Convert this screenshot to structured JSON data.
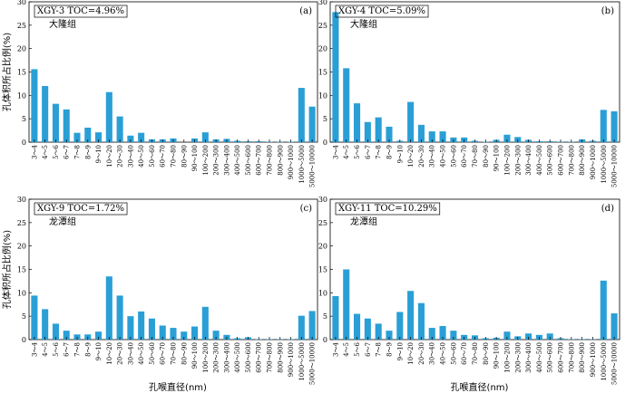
{
  "figure": {
    "ylabel": "孔体积所占比例(%)",
    "xlabel": "孔喉直径(nm)",
    "bar_color": "#2a9fd6"
  },
  "chart_data": [
    {
      "type": "bar",
      "panel": "(a)",
      "sample": "XGY-3 TOC=4.96%",
      "formation": "大隆组",
      "categories": [
        "3～4",
        "4～5",
        "5～6",
        "6～7",
        "7～8",
        "8～9",
        "9～10",
        "10～20",
        "20～30",
        "30～40",
        "40～50",
        "50～60",
        "60～70",
        "70～80",
        "80～90",
        "90～100",
        "100～200",
        "200～300",
        "300～400",
        "400～500",
        "500～600",
        "600～700",
        "700～800",
        "800～900",
        "900～1000",
        "1000～5000",
        "5000～10000"
      ],
      "values": [
        15.6,
        12.0,
        8.2,
        7.0,
        2.0,
        3.1,
        2.1,
        10.7,
        5.5,
        1.4,
        2.0,
        0.6,
        0.6,
        0.8,
        0.0,
        0.8,
        2.1,
        0.6,
        0.7,
        0.3,
        0.2,
        0.2,
        0.1,
        0.1,
        0.1,
        11.6,
        7.6
      ],
      "ylim": [
        0,
        30
      ],
      "yticks": [
        0,
        5,
        10,
        15,
        20,
        25,
        30
      ],
      "ylabel": "孔体积所占比例(%)",
      "xlabel": ""
    },
    {
      "type": "bar",
      "panel": "(b)",
      "sample": "XGY-4 TOC=5.09%",
      "formation": "大隆组",
      "categories": [
        "3～4",
        "4～5",
        "5～6",
        "6～7",
        "7～8",
        "8～9",
        "9～10",
        "10～20",
        "20～30",
        "30～40",
        "40～50",
        "50～60",
        "60～70",
        "70～80",
        "80～90",
        "90～100",
        "100～200",
        "200～300",
        "300～400",
        "400～500",
        "500～600",
        "600～700",
        "700～800",
        "800～900",
        "900～1000",
        "1000～5000",
        "5000～10000"
      ],
      "values": [
        27.8,
        15.8,
        8.3,
        4.3,
        5.3,
        3.3,
        0.3,
        8.6,
        3.7,
        2.3,
        2.3,
        1.0,
        1.0,
        0.3,
        0.1,
        0.5,
        1.6,
        1.1,
        0.5,
        0.2,
        0.2,
        0.1,
        0.1,
        0.6,
        0.3,
        6.9,
        6.6
      ],
      "ylim": [
        0,
        30
      ],
      "yticks": [
        0,
        5,
        10,
        15,
        20,
        25,
        30
      ],
      "ylabel": "",
      "xlabel": ""
    },
    {
      "type": "bar",
      "panel": "(c)",
      "sample": "XGY-9 TOC=1.72%",
      "formation": "龙潭组",
      "categories": [
        "3～4",
        "4～5",
        "5～6",
        "6～7",
        "7～8",
        "8～9",
        "9～10",
        "10～20",
        "20～30",
        "30～40",
        "40～50",
        "50～60",
        "60～70",
        "70～80",
        "80～90",
        "90～100",
        "100～200",
        "200～300",
        "300～400",
        "400～500",
        "500～600",
        "600～700",
        "700～800",
        "800～900",
        "900～1000",
        "1000～5000",
        "5000～10000"
      ],
      "values": [
        9.4,
        6.5,
        3.4,
        1.9,
        1.1,
        1.1,
        1.7,
        13.5,
        9.4,
        5.0,
        6.0,
        4.5,
        3.0,
        2.5,
        1.7,
        2.8,
        7.0,
        1.9,
        1.0,
        0.3,
        0.5,
        0.1,
        0.1,
        0.1,
        0.1,
        5.1,
        6.1
      ],
      "ylim": [
        0,
        30
      ],
      "yticks": [
        0,
        5,
        10,
        15,
        20,
        25,
        30
      ],
      "ylabel": "孔体积所占比例(%)",
      "xlabel": "孔喉直径(nm)"
    },
    {
      "type": "bar",
      "panel": "(d)",
      "sample": "XGY-11 TOC=10.29%",
      "formation": "龙潭组",
      "categories": [
        "3～4",
        "4～5",
        "5～6",
        "6～7",
        "7～8",
        "8～9",
        "9～10",
        "10～20",
        "20～30",
        "30～40",
        "40～50",
        "50～60",
        "60～70",
        "70～80",
        "80～90",
        "90～100",
        "100～200",
        "200～300",
        "300～400",
        "400～500",
        "500～600",
        "600～700",
        "700～800",
        "800～900",
        "900～1000",
        "1000～5000",
        "5000～10000"
      ],
      "values": [
        9.3,
        15.0,
        5.5,
        4.5,
        3.4,
        1.9,
        5.9,
        10.4,
        7.8,
        2.5,
        2.9,
        1.9,
        1.0,
        0.9,
        0.3,
        0.4,
        1.7,
        0.7,
        1.3,
        1.0,
        1.3,
        0.3,
        0.1,
        0.1,
        0.1,
        12.6,
        5.6
      ],
      "ylim": [
        0,
        30
      ],
      "yticks": [
        0,
        5,
        10,
        15,
        20,
        25,
        30
      ],
      "ylabel": "",
      "xlabel": "孔喉直径(nm)"
    }
  ]
}
